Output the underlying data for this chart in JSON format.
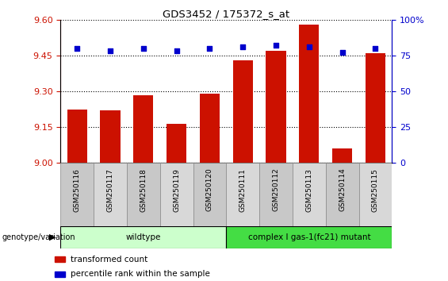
{
  "title": "GDS3452 / 175372_s_at",
  "samples": [
    "GSM250116",
    "GSM250117",
    "GSM250118",
    "GSM250119",
    "GSM250120",
    "GSM250111",
    "GSM250112",
    "GSM250113",
    "GSM250114",
    "GSM250115"
  ],
  "transformed_count": [
    9.225,
    9.22,
    9.285,
    9.165,
    9.29,
    9.43,
    9.47,
    9.58,
    9.06,
    9.46
  ],
  "percentile_rank": [
    80,
    78,
    80,
    78,
    80,
    81,
    82,
    81,
    77,
    80
  ],
  "ylim_left": [
    9.0,
    9.6
  ],
  "ylim_right": [
    0,
    100
  ],
  "yticks_left": [
    9.0,
    9.15,
    9.3,
    9.45,
    9.6
  ],
  "yticks_right": [
    0,
    25,
    50,
    75,
    100
  ],
  "bar_color": "#cc1100",
  "dot_color": "#0000cc",
  "groups": [
    {
      "label": "wildtype",
      "start": 0,
      "end": 5,
      "color": "#ccffcc"
    },
    {
      "label": "complex I gas-1(fc21) mutant",
      "start": 5,
      "end": 10,
      "color": "#44dd44"
    }
  ],
  "genotype_label": "genotype/variation",
  "legend": [
    {
      "color": "#cc1100",
      "label": "transformed count"
    },
    {
      "color": "#0000cc",
      "label": "percentile rank within the sample"
    }
  ],
  "grid_color": "black",
  "tick_color_left": "#cc1100",
  "tick_color_right": "#0000cc",
  "xticklabel_bg_colors": [
    "#c8c8c8",
    "#d8d8d8"
  ]
}
